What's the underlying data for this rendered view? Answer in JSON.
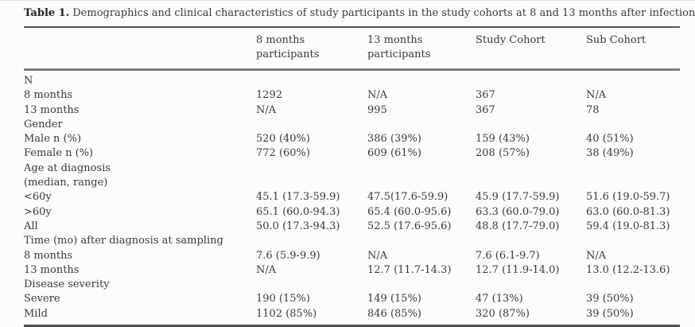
{
  "caption": {
    "label": "Table 1.",
    "text": "Demographics and clinical characteristics of study participants in the study cohorts at 8 and 13 months after infection"
  },
  "table": {
    "columns": [
      "",
      "8 months participants",
      "13 months participants",
      "Study Cohort",
      "Sub Cohort"
    ],
    "rows": [
      {
        "label": "N",
        "section": true
      },
      {
        "label": "8 months",
        "values": [
          "1292",
          "N/A",
          "367",
          "N/A"
        ]
      },
      {
        "label": "13 months",
        "values": [
          "N/A",
          "995",
          "367",
          "78"
        ]
      },
      {
        "label": "Gender",
        "section": true
      },
      {
        "label": "Male n (%)",
        "values": [
          "520 (40%)",
          "386 (39%)",
          "159 (43%)",
          "40 (51%)"
        ]
      },
      {
        "label": "Female n (%)",
        "values": [
          "772 (60%)",
          "609 (61%)",
          "208 (57%)",
          "38 (49%)"
        ]
      },
      {
        "label": "Age at diagnosis\n(median, range)",
        "section": true
      },
      {
        "label": "<60y",
        "values": [
          "45.1 (17.3-59.9)",
          "47.5(17.6-59.9)",
          "45.9 (17.7-59.9)",
          "51.6 (19.0-59.7)"
        ]
      },
      {
        "label": ">60y",
        "values": [
          "65.1 (60.0-94.3)",
          "65.4 (60.0-95.6)",
          "63.3 (60.0-79.0)",
          "63.0 (60.0-81.3)"
        ]
      },
      {
        "label": "All",
        "values": [
          "50.0 (17.3-94.3)",
          "52.5 (17.6-95.6)",
          "48.8 (17.7-79.0)",
          "59.4 (19.0-81.3)"
        ]
      },
      {
        "label": "Time (mo) after diagnosis at sampling",
        "section": true
      },
      {
        "label": "8 months",
        "values": [
          "7.6 (5.9-9.9)",
          "N/A",
          "7.6 (6.1-9.7)",
          "N/A"
        ]
      },
      {
        "label": "13 months",
        "values": [
          "N/A",
          "12.7 (11.7-14.3)",
          "12.7 (11.9-14.0)",
          "13.0 (12.2-13.6)"
        ]
      },
      {
        "label": "Disease severity",
        "section": true
      },
      {
        "label": "Severe",
        "values": [
          "190 (15%)",
          "149 (15%)",
          "47 (13%)",
          "39 (50%)"
        ]
      },
      {
        "label": "Mild",
        "values": [
          "1102 (85%)",
          "846 (85%)",
          "320 (87%)",
          "39 (50%)"
        ]
      }
    ]
  },
  "colors": {
    "text": "#3a3a3a",
    "caption_label": "#242424",
    "rule_dark": "#555555",
    "rule_medium": "#7d7d7d",
    "background": "#fcfcfc"
  }
}
